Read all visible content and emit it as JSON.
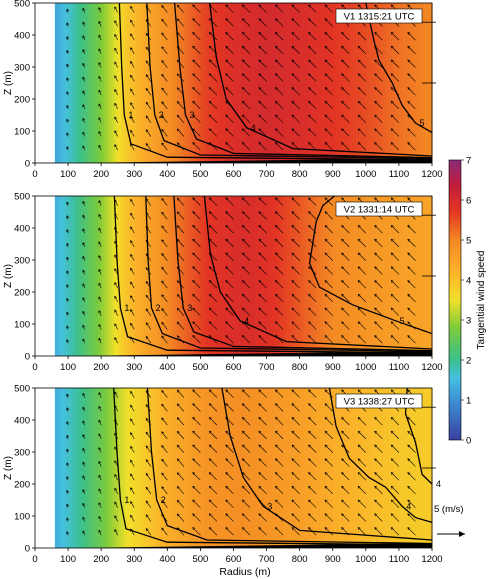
{
  "chart_data": {
    "type": "heatmap",
    "xlabel": "Radius (m)",
    "ylabel": "Z (m)",
    "xlim": [
      0,
      1200
    ],
    "ylim": [
      0,
      500
    ],
    "x_ticks": [
      "0",
      "100",
      "200",
      "300",
      "400",
      "500",
      "600",
      "700",
      "800",
      "900",
      "1000",
      "1100",
      "1200"
    ],
    "y_ticks": [
      "0",
      "100",
      "200",
      "300",
      "400",
      "500"
    ],
    "colorbar": {
      "label": "Tangential wind speed",
      "ticks": [
        "0",
        "1",
        "2",
        "3",
        "4",
        "5",
        "6",
        "7"
      ],
      "range": [
        0,
        7
      ]
    },
    "vector_key": {
      "label": "5 (m/s)"
    },
    "panels": [
      {
        "label": "V1  1315:21 UTC",
        "field_by_radius": {
          "r": [
            60,
            120,
            200,
            280,
            400,
            520,
            620,
            700,
            800,
            900,
            1000,
            1100,
            1200
          ],
          "v": [
            1.2,
            1.8,
            2.8,
            3.9,
            4.9,
            5.6,
            5.9,
            6.0,
            5.9,
            5.7,
            5.5,
            5.2,
            5.0
          ]
        },
        "contours": [
          {
            "level": "1",
            "pts": [
              [
                255,
                500
              ],
              [
                262,
                300
              ],
              [
                270,
                150
              ],
              [
                290,
                60
              ],
              [
                400,
                18
              ],
              [
                1200,
                10
              ]
            ]
          },
          {
            "level": "2",
            "pts": [
              [
                338,
                500
              ],
              [
                348,
                300
              ],
              [
                362,
                150
              ],
              [
                390,
                70
              ],
              [
                500,
                25
              ],
              [
                1200,
                14
              ]
            ]
          },
          {
            "level": "3",
            "pts": [
              [
                422,
                500
              ],
              [
                438,
                300
              ],
              [
                455,
                150
              ],
              [
                488,
                75
              ],
              [
                600,
                30
              ],
              [
                1200,
                17
              ]
            ]
          },
          {
            "level": "4",
            "pts": [
              [
                528,
                500
              ],
              [
                548,
                330
              ],
              [
                578,
                200
              ],
              [
                640,
                110
              ],
              [
                780,
                45
              ],
              [
                1200,
                22
              ]
            ]
          },
          {
            "level": "5",
            "pts": [
              [
                1000,
                500
              ],
              [
                1025,
                380
              ],
              [
                1040,
                320
              ],
              [
                1080,
                250
              ],
              [
                1110,
                180
              ],
              [
                1150,
                125
              ],
              [
                1200,
                95
              ]
            ]
          }
        ]
      },
      {
        "label": "V2  1331:14 UTC",
        "field_by_radius": {
          "r": [
            60,
            120,
            200,
            280,
            400,
            520,
            620,
            700,
            800,
            900,
            1000,
            1100,
            1200
          ],
          "v": [
            1.3,
            1.9,
            2.9,
            4.0,
            5.0,
            5.7,
            5.9,
            5.8,
            5.4,
            5.0,
            4.8,
            4.6,
            4.5
          ]
        },
        "contours": [
          {
            "level": "1",
            "pts": [
              [
                240,
                500
              ],
              [
                248,
                300
              ],
              [
                258,
                150
              ],
              [
                280,
                60
              ],
              [
                400,
                18
              ],
              [
                1200,
                10
              ]
            ]
          },
          {
            "level": "2",
            "pts": [
              [
                335,
                500
              ],
              [
                342,
                300
              ],
              [
                352,
                150
              ],
              [
                385,
                70
              ],
              [
                500,
                25
              ],
              [
                1200,
                14
              ]
            ]
          },
          {
            "level": "3",
            "pts": [
              [
                420,
                500
              ],
              [
                432,
                300
              ],
              [
                448,
                150
              ],
              [
                480,
                75
              ],
              [
                600,
                30
              ],
              [
                1200,
                17
              ]
            ]
          },
          {
            "level": "4",
            "pts": [
              [
                512,
                500
              ],
              [
                530,
                320
              ],
              [
                560,
                200
              ],
              [
                620,
                110
              ],
              [
                760,
                45
              ],
              [
                1200,
                22
              ]
            ]
          },
          {
            "level": "5",
            "pts": [
              [
                905,
                500
              ],
              [
                870,
                470
              ],
              [
                850,
                420
              ],
              [
                830,
                290
              ],
              [
                860,
                215
              ],
              [
                960,
                160
              ],
              [
                1090,
                110
              ],
              [
                1200,
                70
              ]
            ]
          }
        ]
      },
      {
        "label": "V3  1338:27 UTC",
        "field_by_radius": {
          "r": [
            60,
            120,
            200,
            280,
            400,
            520,
            620,
            700,
            800,
            900,
            1000,
            1100,
            1200
          ],
          "v": [
            1.3,
            1.8,
            2.6,
            3.5,
            4.3,
            4.8,
            4.9,
            4.8,
            4.6,
            4.3,
            4.1,
            3.9,
            3.8
          ]
        },
        "contours": [
          {
            "level": "1",
            "pts": [
              [
                238,
                500
              ],
              [
                248,
                300
              ],
              [
                258,
                150
              ],
              [
                275,
                60
              ],
              [
                400,
                18
              ],
              [
                1200,
                10
              ]
            ]
          },
          {
            "level": "2",
            "pts": [
              [
                340,
                500
              ],
              [
                352,
                300
              ],
              [
                368,
                150
              ],
              [
                400,
                70
              ],
              [
                520,
                25
              ],
              [
                1200,
                14
              ]
            ]
          },
          {
            "level": "3",
            "pts": [
              [
                565,
                500
              ],
              [
                590,
                350
              ],
              [
                630,
                220
              ],
              [
                690,
                130
              ],
              [
                800,
                55
              ],
              [
                1200,
                25
              ]
            ]
          },
          {
            "level": "4",
            "pts": [
              [
                890,
                500
              ],
              [
                910,
                380
              ],
              [
                950,
                280
              ],
              [
                1010,
                220
              ],
              [
                1060,
                190
              ],
              [
                1110,
                130
              ],
              [
                1150,
                95
              ],
              [
                1200,
                80
              ]
            ]
          },
          {
            "level": "4",
            "pts": [
              [
                1125,
                500
              ],
              [
                1120,
                420
              ],
              [
                1150,
                330
              ],
              [
                1170,
                230
              ],
              [
                1200,
                200
              ]
            ]
          }
        ]
      }
    ]
  }
}
